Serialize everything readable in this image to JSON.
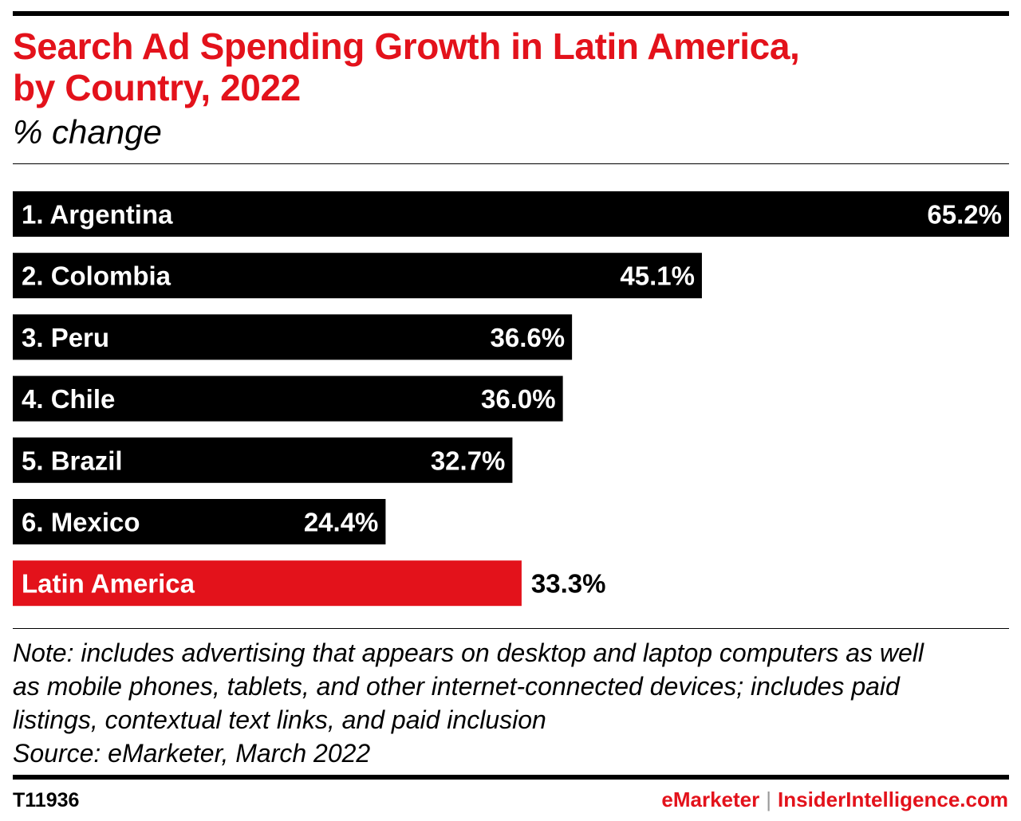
{
  "header": {
    "title_line1": "Search Ad Spending Growth in Latin America,",
    "title_line2": "by Country, 2022",
    "subtitle": "% change"
  },
  "chart_data": {
    "type": "bar",
    "orientation": "horizontal",
    "title": "Search Ad Spending Growth in Latin America, by Country, 2022",
    "subtitle": "% change",
    "categories": [
      "1. Argentina",
      "2. Colombia",
      "3. Peru",
      "4. Chile",
      "5. Brazil",
      "6. Mexico",
      "Latin America"
    ],
    "values": [
      65.2,
      45.1,
      36.6,
      36.0,
      32.7,
      24.4,
      33.3
    ],
    "value_labels": [
      "65.2%",
      "45.1%",
      "36.6%",
      "36.0%",
      "32.7%",
      "24.4%",
      "33.3%"
    ],
    "bar_colors": [
      "#000000",
      "#000000",
      "#000000",
      "#000000",
      "#000000",
      "#000000",
      "#e3121b"
    ],
    "grid": false,
    "legend": "none"
  },
  "notes": {
    "note_lines": [
      "Note: includes advertising that appears on desktop and laptop computers as well",
      "as mobile phones, tablets, and other internet-connected devices; includes paid",
      "listings, contextual text links, and paid inclusion"
    ],
    "source": "Source: eMarketer, March 2022"
  },
  "footer": {
    "chart_id": "T11936",
    "brand_emarketer": "eMarketer",
    "separator": "|",
    "brand_insider": "InsiderIntelligence.com"
  },
  "colors": {
    "accent": "#e3121b",
    "bar": "#000000",
    "text": "#000000",
    "background": "#ffffff"
  }
}
